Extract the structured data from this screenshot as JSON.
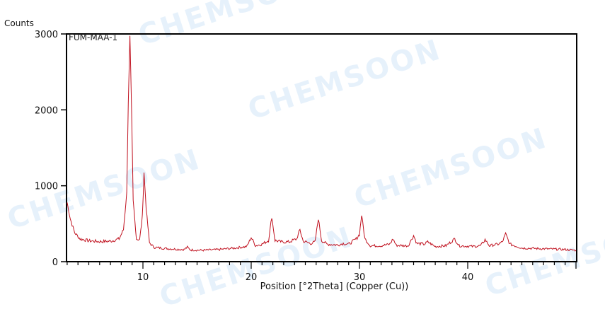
{
  "chart_data": {
    "type": "line",
    "title": "",
    "sample_label": "FUM-MAA-1",
    "xlabel": "Position [°2Theta] (Copper (Cu))",
    "ylabel": "Counts",
    "xlim": [
      3,
      50
    ],
    "ylim": [
      0,
      3000
    ],
    "x_ticks": [
      10,
      20,
      30,
      40
    ],
    "y_ticks": [
      0,
      1000,
      2000,
      3000
    ],
    "grid": false,
    "legend": "none",
    "line_color": "#c0111f",
    "series": [
      {
        "name": "FUM-MAA-1",
        "x": [
          3.0,
          3.3,
          3.7,
          4.2,
          5.0,
          6.0,
          7.0,
          7.8,
          8.2,
          8.5,
          8.65,
          8.8,
          8.95,
          9.1,
          9.4,
          9.7,
          9.95,
          10.1,
          10.3,
          10.6,
          11.0,
          12.0,
          13.0,
          13.8,
          14.1,
          14.4,
          15.5,
          17.0,
          18.5,
          19.6,
          20.0,
          20.4,
          21.0,
          21.6,
          21.9,
          22.2,
          22.8,
          23.5,
          24.2,
          24.5,
          24.8,
          25.5,
          25.9,
          26.2,
          26.5,
          27.0,
          28.0,
          28.5,
          29.0,
          29.7,
          30.0,
          30.2,
          30.5,
          31.0,
          32.0,
          32.8,
          33.1,
          33.4,
          34.5,
          35.0,
          35.3,
          36.0,
          36.3,
          37.0,
          38.0,
          38.8,
          39.2,
          40.5,
          41.2,
          41.6,
          42.0,
          42.8,
          43.2,
          43.5,
          43.9,
          45.0,
          47.0,
          49.0,
          50.0
        ],
        "y": [
          780,
          560,
          380,
          300,
          275,
          265,
          270,
          300,
          420,
          900,
          2100,
          2960,
          2000,
          800,
          300,
          290,
          600,
          1180,
          700,
          250,
          190,
          175,
          165,
          160,
          190,
          155,
          150,
          160,
          180,
          200,
          320,
          210,
          230,
          280,
          590,
          280,
          260,
          260,
          300,
          420,
          270,
          240,
          260,
          570,
          280,
          230,
          220,
          240,
          230,
          300,
          360,
          615,
          300,
          210,
          210,
          230,
          300,
          215,
          210,
          345,
          240,
          230,
          260,
          200,
          210,
          300,
          210,
          200,
          210,
          290,
          210,
          230,
          260,
          365,
          230,
          180,
          170,
          160,
          150
        ]
      }
    ],
    "annotations": [
      "FUM-MAA-1"
    ],
    "peaks": [
      {
        "x": 8.8,
        "y": 2960
      },
      {
        "x": 10.1,
        "y": 1180
      },
      {
        "x": 20.0,
        "y": 320
      },
      {
        "x": 21.9,
        "y": 590
      },
      {
        "x": 24.5,
        "y": 420
      },
      {
        "x": 26.2,
        "y": 570
      },
      {
        "x": 30.2,
        "y": 615
      },
      {
        "x": 33.1,
        "y": 300
      },
      {
        "x": 35.0,
        "y": 345
      },
      {
        "x": 38.8,
        "y": 300
      },
      {
        "x": 41.6,
        "y": 290
      },
      {
        "x": 43.5,
        "y": 365
      }
    ]
  },
  "labels": {
    "y_unit": "Counts",
    "x_axis": "Position [°2Theta] (Copper (Cu))",
    "sample": "FUM-MAA-1",
    "y_ticks": [
      "0",
      "1000",
      "2000",
      "3000"
    ],
    "x_ticks": [
      "10",
      "20",
      "30",
      "40"
    ]
  },
  "watermark": {
    "text": "CHEMSOON",
    "color": "#e6f1fb"
  }
}
